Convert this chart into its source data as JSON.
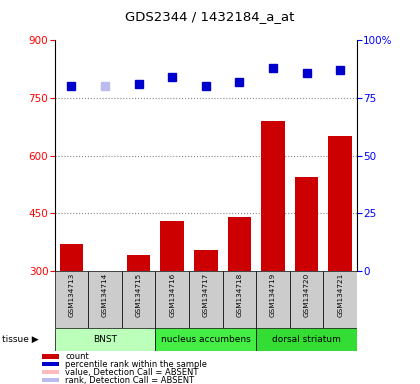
{
  "title": "GDS2344 / 1432184_a_at",
  "samples": [
    "GSM134713",
    "GSM134714",
    "GSM134715",
    "GSM134716",
    "GSM134717",
    "GSM134718",
    "GSM134719",
    "GSM134720",
    "GSM134721"
  ],
  "bar_values": [
    370,
    290,
    340,
    430,
    355,
    440,
    690,
    545,
    650
  ],
  "bar_absent": [
    false,
    true,
    false,
    false,
    false,
    false,
    false,
    false,
    false
  ],
  "rank_values": [
    80,
    80,
    81,
    84,
    80,
    82,
    88,
    86,
    87
  ],
  "rank_absent": [
    false,
    true,
    false,
    false,
    false,
    false,
    false,
    false,
    false
  ],
  "bar_color_present": "#cc0000",
  "bar_color_absent": "#ffaaaa",
  "rank_color_present": "#0000cc",
  "rank_color_absent": "#bbbbee",
  "left_ylim": [
    300,
    900
  ],
  "left_yticks": [
    300,
    450,
    600,
    750,
    900
  ],
  "right_ylim": [
    0,
    100
  ],
  "right_yticks": [
    0,
    25,
    50,
    75,
    100
  ],
  "right_yticklabels": [
    "0",
    "25",
    "50",
    "75",
    "100%"
  ],
  "tissue_groups": [
    {
      "label": "BNST",
      "start": 0,
      "end": 3,
      "color": "#bbffbb"
    },
    {
      "label": "nucleus accumbens",
      "start": 3,
      "end": 6,
      "color": "#44ee44"
    },
    {
      "label": "dorsal striatum",
      "start": 6,
      "end": 9,
      "color": "#33dd33"
    }
  ],
  "tissue_label": "tissue",
  "legend_items": [
    {
      "color": "#cc0000",
      "label": "count"
    },
    {
      "color": "#0000cc",
      "label": "percentile rank within the sample"
    },
    {
      "color": "#ffbbbb",
      "label": "value, Detection Call = ABSENT"
    },
    {
      "color": "#bbbbee",
      "label": "rank, Detection Call = ABSENT"
    }
  ],
  "bar_width": 0.7,
  "rank_marker_size": 6,
  "grid_yticks": [
    450,
    600,
    750
  ],
  "grid_color": "#888888"
}
